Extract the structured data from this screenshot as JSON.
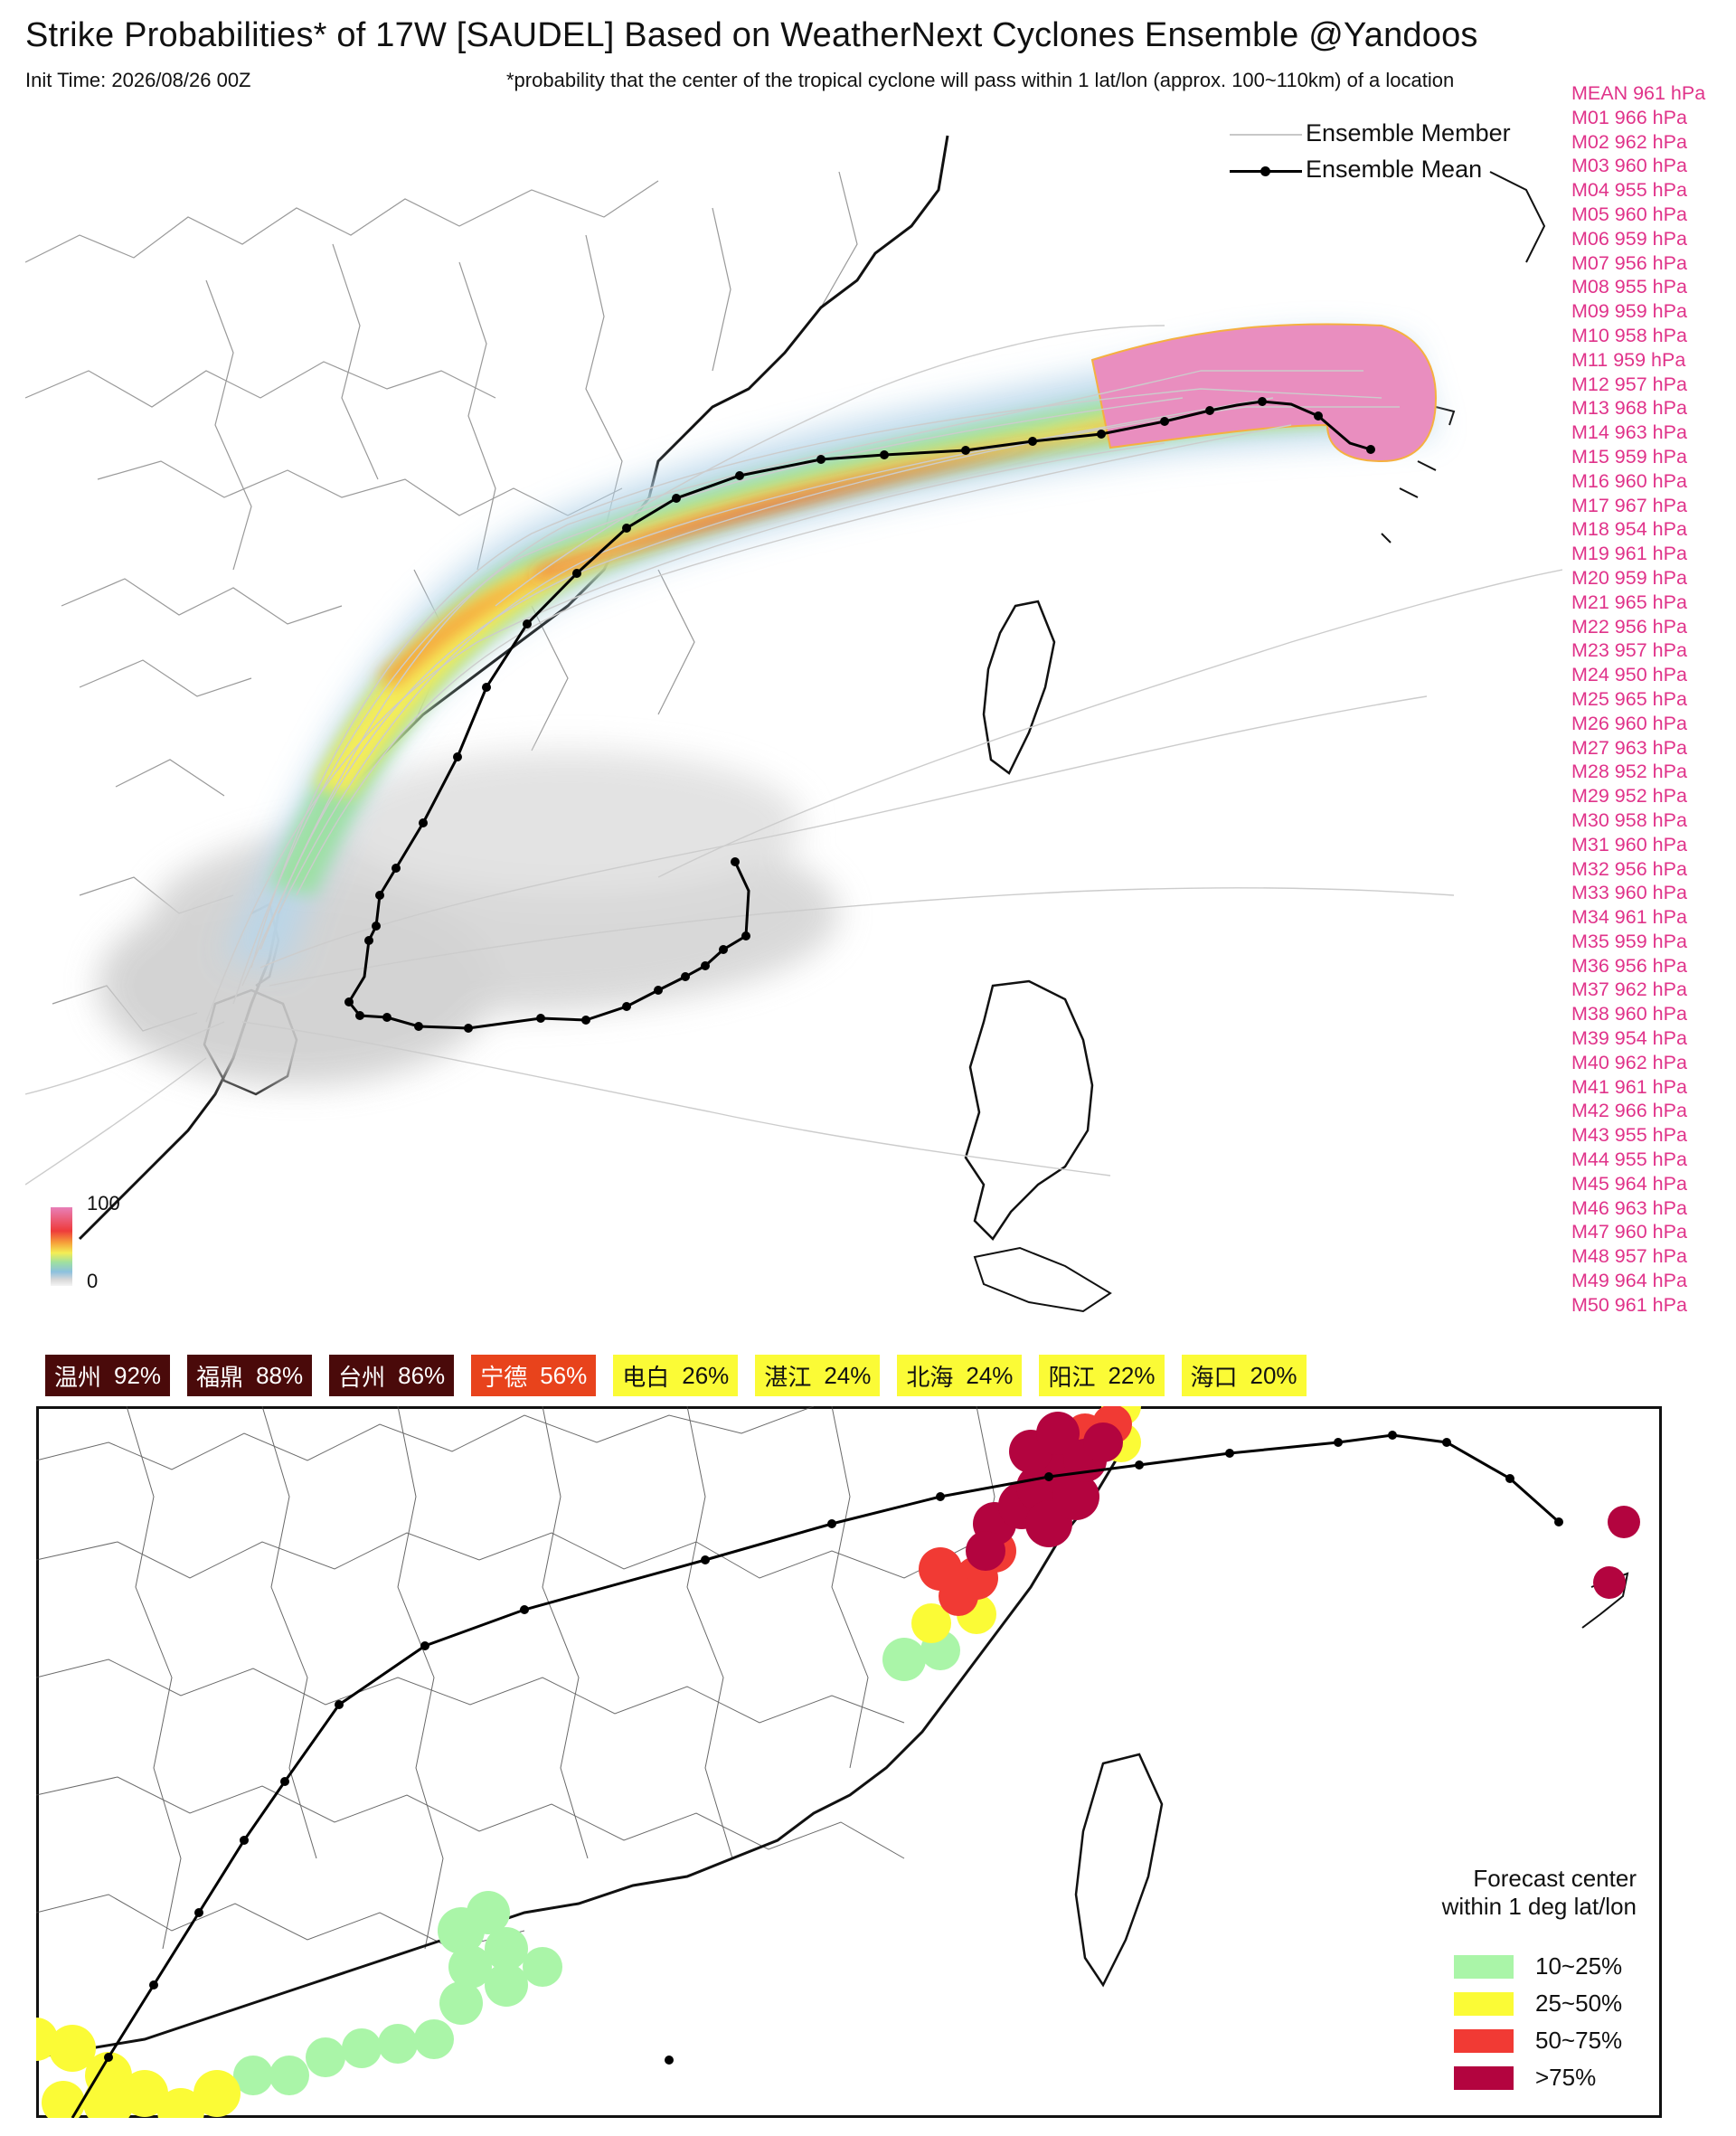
{
  "header": {
    "title": "Strike Probabilities* of 17W [SAUDEL] Based on WeatherNext Cyclones Ensemble  @Yandoos",
    "init_time": "Init Time: 2026/08/26 00Z",
    "footnote": "*probability that the center of the tropical cyclone will pass within 1 lat/lon (approx. 100~110km) of a location"
  },
  "track_legend": {
    "member_label": "Ensemble Member",
    "mean_label": "Ensemble Mean",
    "member_color": "#c8c8c8",
    "mean_color": "#000000"
  },
  "ensemble_pressures": [
    "MEAN 961 hPa",
    "M01 966 hPa",
    "M02 962 hPa",
    "M03 960 hPa",
    "M04 955 hPa",
    "M05 960 hPa",
    "M06 959 hPa",
    "M07 956 hPa",
    "M08 955 hPa",
    "M09 959 hPa",
    "M10 958 hPa",
    "M11 959 hPa",
    "M12 957 hPa",
    "M13 968 hPa",
    "M14 963 hPa",
    "M15 959 hPa",
    "M16 960 hPa",
    "M17 967 hPa",
    "M18 954 hPa",
    "M19 961 hPa",
    "M20 959 hPa",
    "M21 965 hPa",
    "M22 956 hPa",
    "M23 957 hPa",
    "M24 950 hPa",
    "M25 965 hPa",
    "M26 960 hPa",
    "M27 963 hPa",
    "M28 952 hPa",
    "M29 952 hPa",
    "M30 958 hPa",
    "M31 960 hPa",
    "M32 956 hPa",
    "M33 960 hPa",
    "M34 961 hPa",
    "M35 959 hPa",
    "M36 956 hPa",
    "M37 962 hPa",
    "M38 960 hPa",
    "M39 954 hPa",
    "M40 962 hPa",
    "M41 961 hPa",
    "M42 966 hPa",
    "M43 955 hPa",
    "M44 955 hPa",
    "M45 964 hPa",
    "M46 963 hPa",
    "M47 960 hPa",
    "M48 957 hPa",
    "M49 964 hPa",
    "M50 961 hPa"
  ],
  "colorbar": {
    "max": "100",
    "min": "0"
  },
  "city_probabilities": [
    {
      "city": "温州",
      "prob": "92%",
      "bg": "#4a0a0a",
      "fg": "#ffffff"
    },
    {
      "city": "福鼎",
      "prob": "88%",
      "bg": "#4a0a0a",
      "fg": "#ffffff"
    },
    {
      "city": "台州",
      "prob": "86%",
      "bg": "#4a0a0a",
      "fg": "#ffffff"
    },
    {
      "city": "宁德",
      "prob": "56%",
      "bg": "#e8431c",
      "fg": "#ffffff"
    },
    {
      "city": "电白",
      "prob": "26%",
      "bg": "#fbfb36",
      "fg": "#111111"
    },
    {
      "city": "湛江",
      "prob": "24%",
      "bg": "#fbfb36",
      "fg": "#111111"
    },
    {
      "city": "北海",
      "prob": "24%",
      "bg": "#fbfb36",
      "fg": "#111111"
    },
    {
      "city": "阳江",
      "prob": "22%",
      "bg": "#fbfb36",
      "fg": "#111111"
    },
    {
      "city": "海口",
      "prob": "20%",
      "bg": "#fbfb36",
      "fg": "#111111"
    }
  ],
  "zone_legend": {
    "header_line1": "Forecast center",
    "header_line2": "within 1 deg lat/lon",
    "items": [
      {
        "label": "10~25%",
        "color": "#aaf5a8"
      },
      {
        "label": "25~50%",
        "color": "#fbfb36"
      },
      {
        "label": "50~75%",
        "color": "#f13a34"
      },
      {
        "label": ">75%",
        "color": "#b3043f"
      }
    ]
  }
}
